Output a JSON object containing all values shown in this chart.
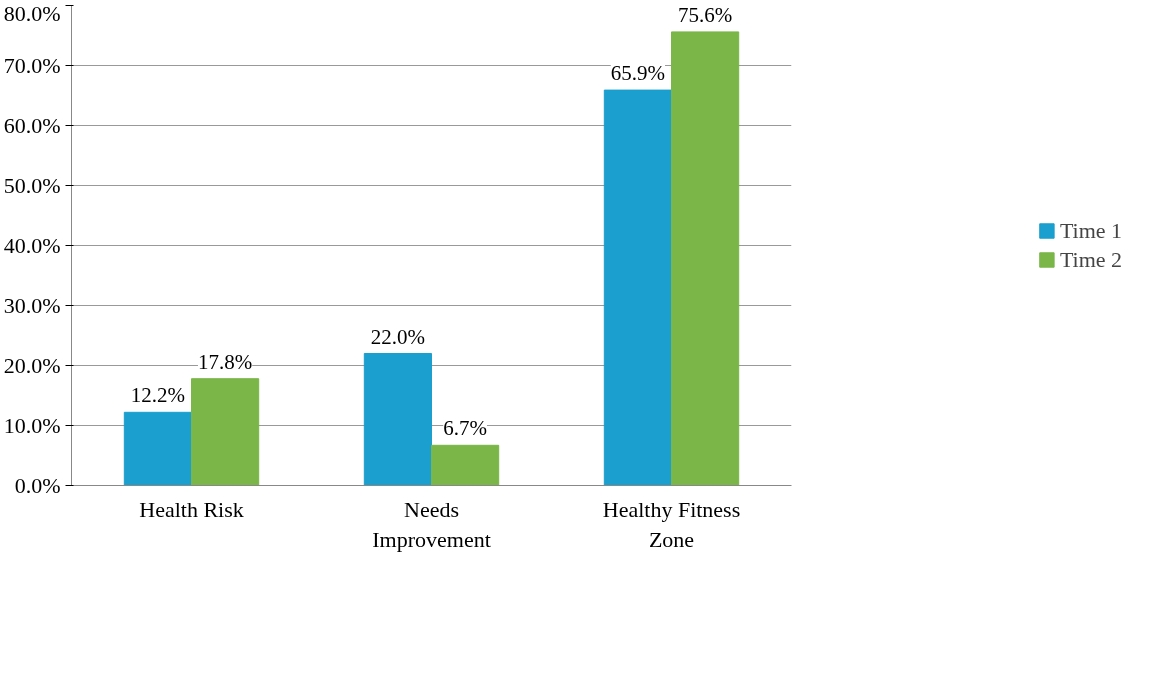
{
  "chart_data": {
    "type": "bar",
    "categories": [
      "Health Risk",
      "Needs Improvement",
      "Healthy Fitness Zone"
    ],
    "series": [
      {
        "name": "Time 1",
        "color": "#1a9fce",
        "values": [
          12.2,
          22.0,
          65.9
        ],
        "value_labels": [
          "12.2%",
          "22.0%",
          "65.9%"
        ]
      },
      {
        "name": "Time 2",
        "color": "#7ab648",
        "values": [
          17.8,
          6.7,
          75.6
        ],
        "value_labels": [
          "17.8%",
          "6.7%",
          "75.6%"
        ]
      }
    ],
    "ylim": [
      0,
      80
    ],
    "yticks": [
      {
        "value": 0,
        "label": "0.0%"
      },
      {
        "value": 10,
        "label": "10.0%"
      },
      {
        "value": 20,
        "label": "20.0%"
      },
      {
        "value": 30,
        "label": "30.0%"
      },
      {
        "value": 40,
        "label": "40.0%"
      },
      {
        "value": 50,
        "label": "50.0%"
      },
      {
        "value": 60,
        "label": "60.0%"
      },
      {
        "value": 70,
        "label": "70.0%"
      },
      {
        "value": 80,
        "label": "80.0%"
      }
    ],
    "grid": "y",
    "legend": "right"
  }
}
